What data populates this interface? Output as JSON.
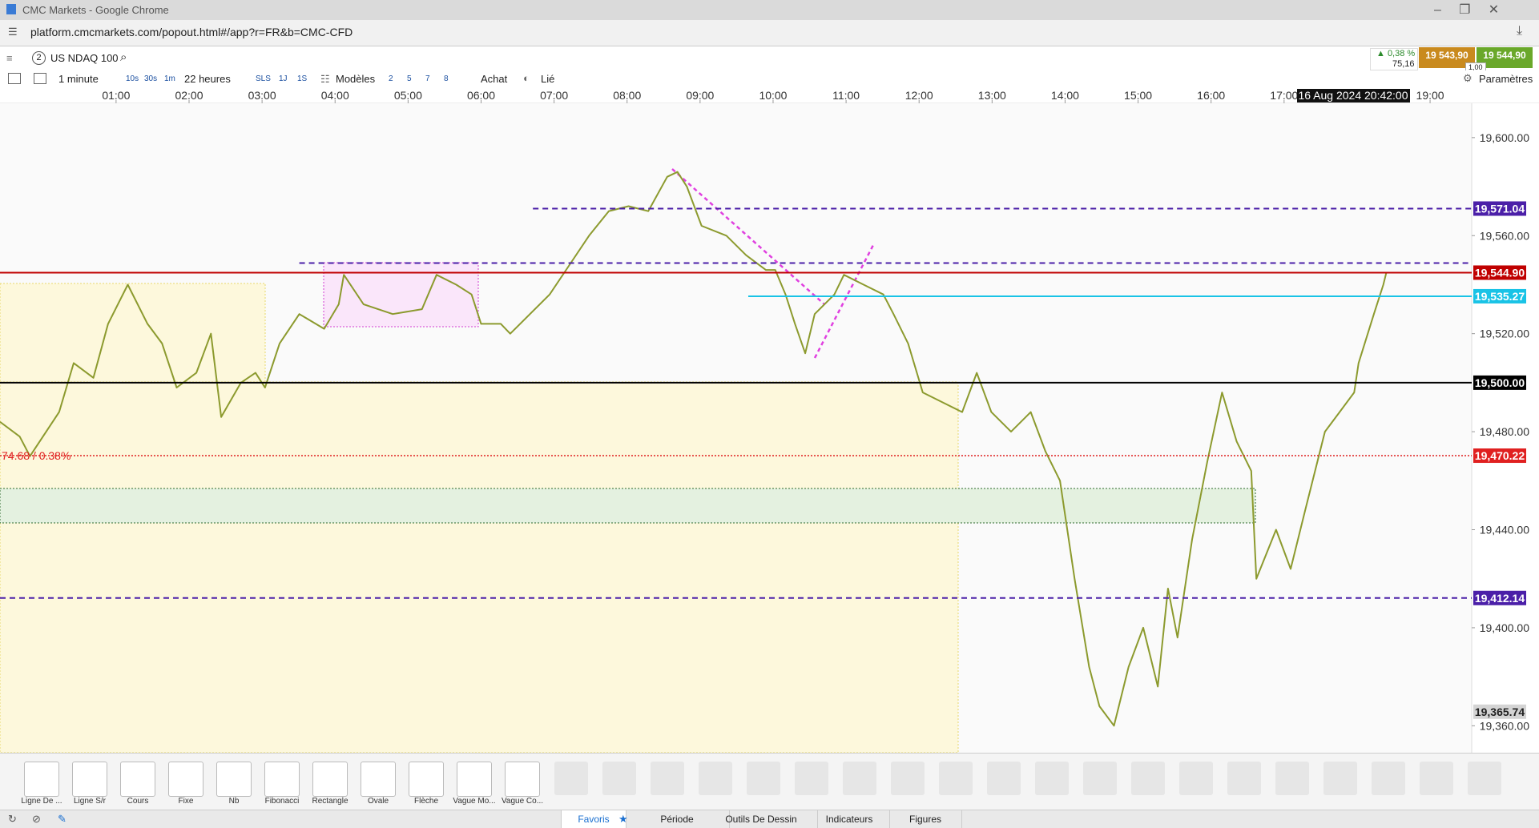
{
  "window": {
    "title": "CMC Markets - Google Chrome",
    "url": "platform.cmcmarkets.com/popout.html#/app?r=FR&b=CMC-CFD"
  },
  "instrument": {
    "badge": "2",
    "name": "US NDAQ 100",
    "change_pct": "▲ 0,38 %",
    "change_pts": "75,16",
    "sell": "19 543,90",
    "buy": "19 544,90",
    "size": "1,00"
  },
  "toolbar": {
    "interval": "1 minute",
    "presets": [
      "10s",
      "30s",
      "1m"
    ],
    "range": "22 heures",
    "periods": [
      "SLS",
      "1J",
      "1S"
    ],
    "models": "Modèles",
    "counts": [
      "2",
      "5",
      "7",
      "8"
    ],
    "order": "Achat",
    "link": "Lié",
    "settings": "Paramètres"
  },
  "chart": {
    "type": "line",
    "xlim": [
      -0.59,
      19.57
    ],
    "ylim": [
      19349,
      19614
    ],
    "xticks": [
      {
        "value": 1,
        "label": "01:00"
      },
      {
        "value": 2,
        "label": "02:00"
      },
      {
        "value": 3,
        "label": "03:00"
      },
      {
        "value": 4,
        "label": "04:00"
      },
      {
        "value": 5,
        "label": "05:00"
      },
      {
        "value": 6,
        "label": "06:00"
      },
      {
        "value": 7,
        "label": "07:00"
      },
      {
        "value": 8,
        "label": "08:00"
      },
      {
        "value": 9,
        "label": "09:00"
      },
      {
        "value": 10,
        "label": "10:00"
      },
      {
        "value": 11,
        "label": "11:00"
      },
      {
        "value": 12,
        "label": "12:00"
      },
      {
        "value": 13,
        "label": "13:00"
      },
      {
        "value": 14,
        "label": "14:00"
      },
      {
        "value": 15,
        "label": "15:00"
      },
      {
        "value": 16,
        "label": "16:00"
      },
      {
        "value": 17,
        "label": "17:00"
      },
      {
        "value": 19,
        "label": "19:00"
      }
    ],
    "yticks": [
      {
        "value": 19600,
        "label": "19,600.00"
      },
      {
        "value": 19560,
        "label": "19,560.00"
      },
      {
        "value": 19520,
        "label": "19,520.00"
      },
      {
        "value": 19480,
        "label": "19,480.00"
      },
      {
        "value": 19440,
        "label": "19,440.00"
      },
      {
        "value": 19400,
        "label": "19,400.00"
      },
      {
        "value": 19360,
        "label": "19,360.00"
      }
    ],
    "cursor_label": "16 Aug 2024 20:42:00",
    "annotation": "74.68 / 0.38%",
    "x": [
      -0.59,
      -0.32,
      -0.18,
      0.22,
      0.42,
      0.69,
      0.89,
      1.16,
      1.43,
      1.63,
      1.83,
      2.1,
      2.3,
      2.44,
      2.71,
      2.91,
      3.04,
      3.24,
      3.51,
      3.85,
      4.05,
      4.12,
      4.39,
      4.79,
      5.19,
      5.39,
      5.66,
      5.87,
      6.0,
      6.27,
      6.4,
      6.67,
      6.94,
      7.21,
      7.48,
      7.75,
      8.02,
      8.29,
      8.55,
      8.69,
      8.82,
      9.02,
      9.36,
      9.63,
      9.9,
      10.03,
      10.17,
      10.3,
      10.44,
      10.57,
      10.84,
      10.97,
      11.24,
      11.51,
      11.65,
      11.85,
      12.05,
      12.32,
      12.59,
      12.79,
      12.99,
      13.26,
      13.53,
      13.73,
      13.93,
      14.13,
      14.33,
      14.47,
      14.67,
      14.87,
      15.07,
      15.27,
      15.41,
      15.54,
      15.74,
      15.95,
      16.15,
      16.35,
      16.55,
      16.62,
      16.89,
      17.09,
      17.29,
      17.56,
      17.76,
      17.96,
      18.02,
      18.23,
      18.36,
      18.4
    ],
    "series": [
      {
        "color": "#8c9a2e",
        "values": [
          19484,
          19478,
          19470,
          19488,
          19508,
          19502,
          19524,
          19540,
          19524,
          19516,
          19498,
          19504,
          19520,
          19486,
          19500,
          19504,
          19498,
          19516,
          19528,
          19522,
          19532,
          19544,
          19532,
          19528,
          19530,
          19544,
          19540,
          19536,
          19524,
          19524,
          19520,
          19528,
          19536,
          19548,
          19560,
          19570,
          19572,
          19570,
          19584,
          19586,
          19580,
          19564,
          19560,
          19552,
          19546,
          19546,
          19536,
          19524,
          19512,
          19528,
          19536,
          19544,
          19540,
          19536,
          19528,
          19516,
          19496,
          19492,
          19488,
          19504,
          19488,
          19480,
          19488,
          19472,
          19460,
          19420,
          19384,
          19368,
          19360,
          19384,
          19400,
          19376,
          19416,
          19396,
          19436,
          19468,
          19496,
          19476,
          19464,
          19420,
          19440,
          19424,
          19448,
          19480,
          19488,
          19496,
          19508,
          19528,
          19540,
          19544.9
        ]
      }
    ],
    "levels": [
      {
        "value": 19571.04,
        "label": "19,571.04",
        "color": "#4b1fa8",
        "style": "dashed",
        "from": 6.71
      },
      {
        "value": 19548.8,
        "color": "#4b1fa8",
        "style": "dashed",
        "from": 3.51
      },
      {
        "value": 19544.9,
        "label": "19,544.90",
        "color": "#c00000",
        "style": "solid",
        "from": -0.59
      },
      {
        "value": 19535.27,
        "label": "19,535.27",
        "color": "#19c3e6",
        "style": "solid",
        "from": 9.66
      },
      {
        "value": 19500.0,
        "label": "19,500.00",
        "color": "#000000",
        "style": "solid",
        "from": -0.59
      },
      {
        "value": 19470.22,
        "label": "19,470.22",
        "color": "#e02020",
        "style": "dotted",
        "from": -0.59
      },
      {
        "value": 19412.14,
        "label": "19,412.14",
        "color": "#4b1fa8",
        "style": "dashed",
        "from": -0.59
      },
      {
        "value": 19365.74,
        "label": "19,365.74",
        "color": "#d4d4d4",
        "style": "none",
        "from": -0.59
      }
    ]
  },
  "tools": [
    "Ligne De ...",
    "Ligne S/r",
    "Cours",
    "Fixe",
    "Nb",
    "Fibonacci",
    "Rectangle",
    "Ovale",
    "Flèche",
    "Vague Mo...",
    "Vague Co..."
  ],
  "tabs": [
    "Favoris",
    "Période",
    "Outils De Dessin",
    "Indicateurs",
    "Figures"
  ]
}
